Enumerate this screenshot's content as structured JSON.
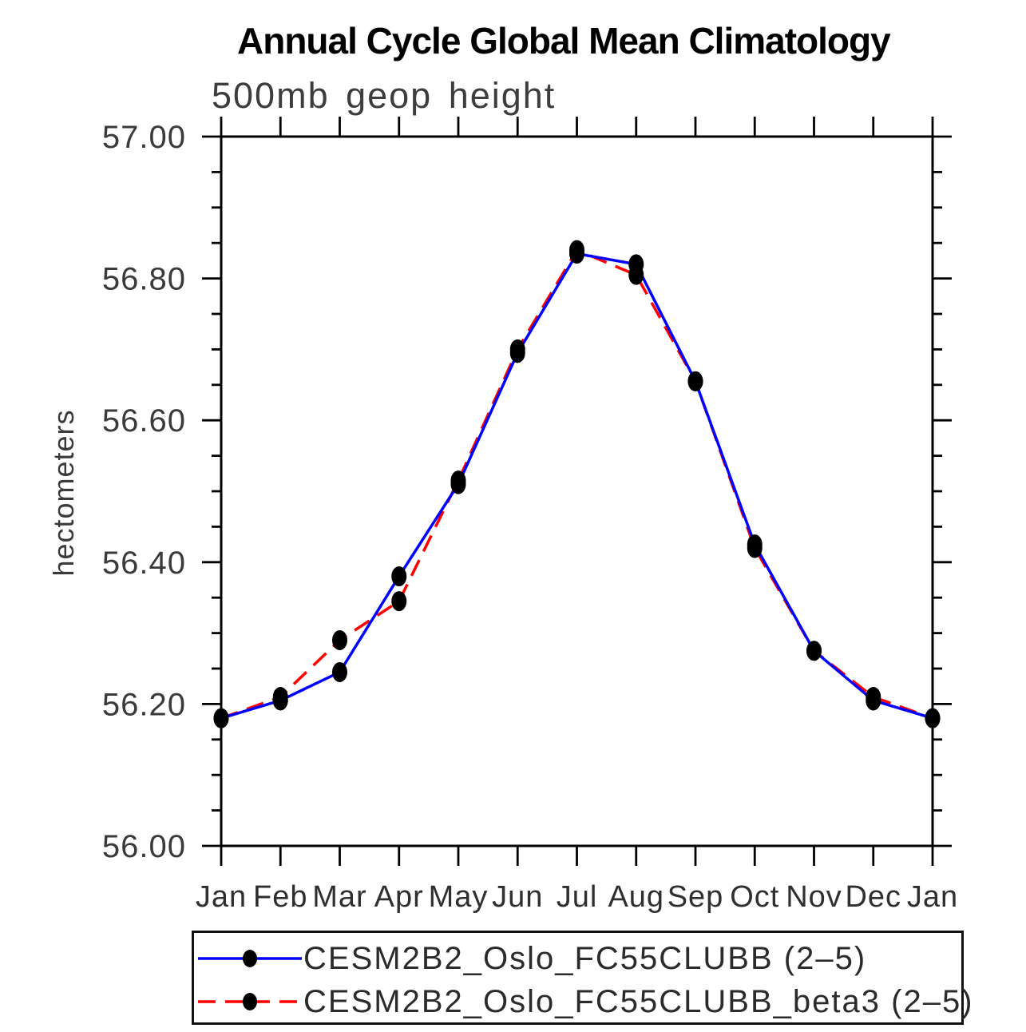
{
  "title": "Annual Cycle Global Mean Climatology",
  "subtitle": "500mb geop height",
  "chart_data": {
    "type": "line",
    "title": "Annual Cycle Global Mean Climatology",
    "subtitle": "500mb geop height",
    "xlabel": "",
    "ylabel": "hectometers",
    "ylim": [
      56.0,
      57.0
    ],
    "ytick_values": [
      56.0,
      56.2,
      56.4,
      56.6,
      56.8,
      57.0
    ],
    "ytick_labels": [
      "56.00",
      "56.20",
      "56.40",
      "56.60",
      "56.80",
      "57.00"
    ],
    "yminor_step": 0.05,
    "grid": false,
    "legend_position": "bottom",
    "x_categories": [
      "Jan",
      "Feb",
      "Mar",
      "Apr",
      "May",
      "Jun",
      "Jul",
      "Aug",
      "Sep",
      "Oct",
      "Nov",
      "Dec",
      "Jan"
    ],
    "series": [
      {
        "name": "CESM2B2_Oslo_FC55CLUBB (2–5)",
        "color": "#0000ff",
        "line_style": "solid",
        "marker": "filled-black-circle",
        "values": [
          56.18,
          56.205,
          56.245,
          56.38,
          56.51,
          56.695,
          56.835,
          56.82,
          56.655,
          56.425,
          56.275,
          56.205,
          56.18
        ]
      },
      {
        "name": "CESM2B2_Oslo_FC55CLUBB_beta3 (2–5)",
        "color": "#ff0000",
        "line_style": "dashed",
        "marker": "filled-black-circle",
        "values": [
          56.18,
          56.21,
          56.29,
          56.345,
          56.515,
          56.7,
          56.84,
          56.805,
          56.655,
          56.42,
          56.275,
          56.21,
          56.18
        ]
      }
    ]
  },
  "colors": {
    "frame": "#000000",
    "tick": "#000000",
    "marker": "#000000",
    "blue_line": "#0000ff",
    "red_line": "#ff0000",
    "axis_text": "#3a3a3a",
    "month_text": "#2f2f2f"
  }
}
